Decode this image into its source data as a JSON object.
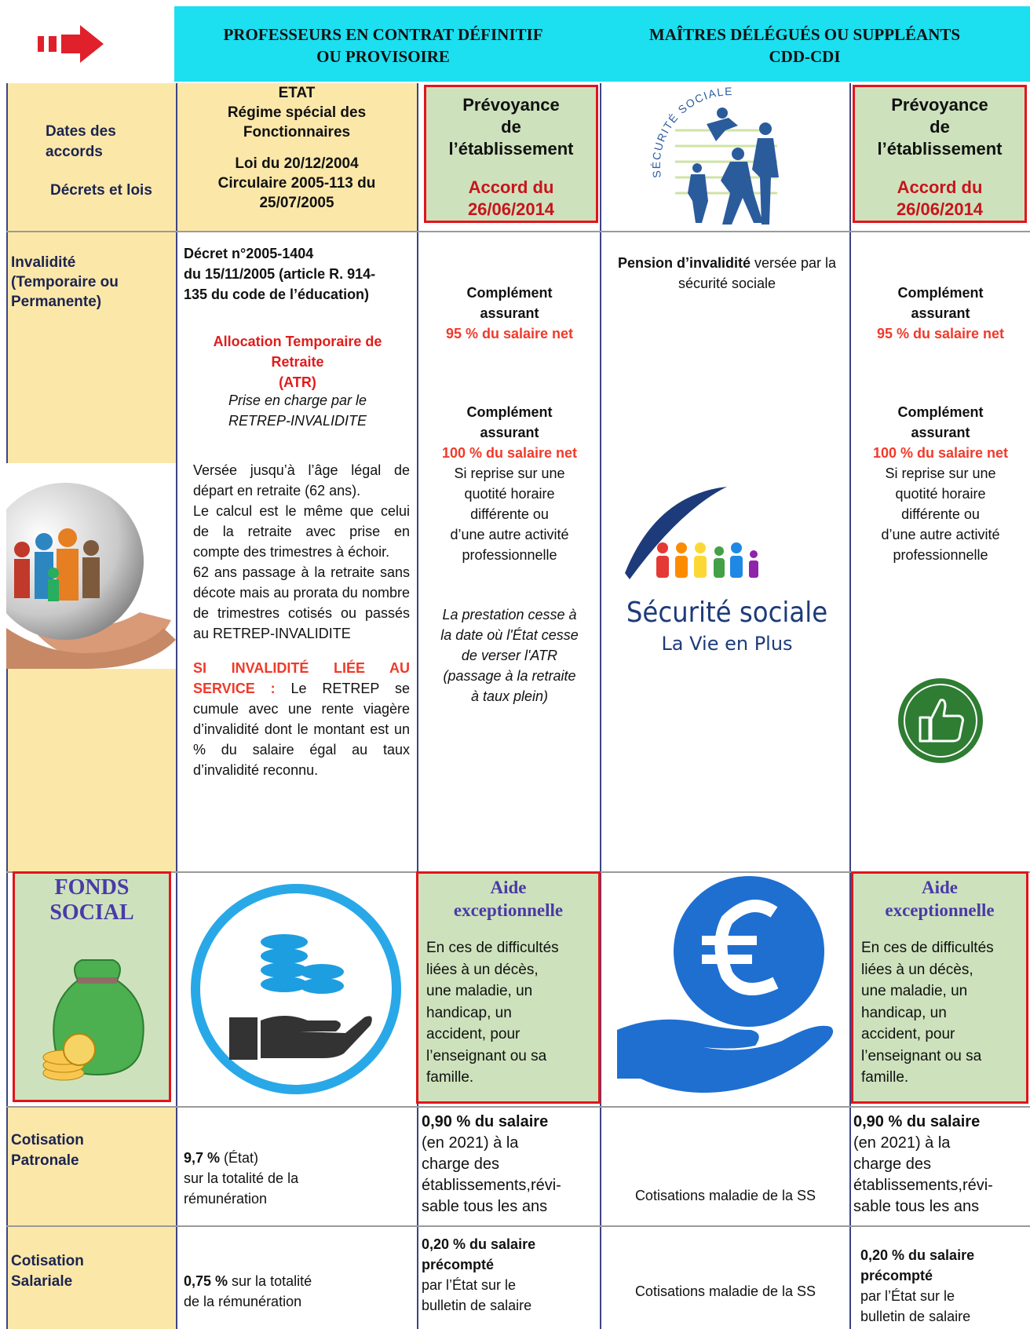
{
  "header": {
    "left_title": [
      "PROFESSEURS EN CONTRAT DÉFINITIF",
      "OU PROVISOIRE"
    ],
    "right_title": [
      "MAÎTRES DÉLÉGUÉS OU SUPPLÉANTS",
      "CDD-CDI"
    ]
  },
  "accords": {
    "label": [
      "Dates des",
      "accords"
    ],
    "label_2": "Décrets et lois",
    "etat": [
      "ETAT",
      "Régime spécial des",
      "Fonctionnaires"
    ],
    "loi": [
      "Loi du 20/12/2004",
      "Circulaire  2005-113 du",
      "25/07/2005"
    ],
    "prevoyance_left": {
      "title": [
        "Prévoyance",
        "de",
        "l’établissement"
      ],
      "accord": [
        "Accord  du",
        "26/06/2014"
      ]
    },
    "logo_text": "SÉCURITÉ SOCIALE",
    "prevoyance_right": {
      "title": [
        "Prévoyance",
        "de",
        "l’établissement"
      ],
      "accord": [
        "Accord  du",
        "26/06/2014"
      ]
    }
  },
  "invalidite": {
    "label": [
      "Invalidité",
      "(Temporaire ou",
      "Permanente)"
    ],
    "etat": {
      "decret": [
        "Décret n°2005-1404",
        "du 15/11/2005 (article R. 914-",
        "135 du code de l’éducation)"
      ],
      "atr": [
        "Allocation Temporaire de",
        "Retraite",
        "(ATR)"
      ],
      "prise": [
        "Prise en charge par le",
        "RETREP-INVALIDITE"
      ],
      "details": [
        "Versée jusqu’à l’âge légal de départ en retraite (62 ans).",
        "Le calcul est le même que celui de la retraite avec prise en compte des trimestres à échoir.",
        "62 ans passage à la retraite sans décote mais au prorata du nombre de trimestres cotisés ou passés au RETREP-INVALIDITE"
      ],
      "service_label": "SI INVALIDITÉ LIÉE AU SERVICE :",
      "service_text": " Le RETREP se cumule avec une rente viagère d’invalidité dont le montant est un % du salaire égal au taux d’invalidité reconnu."
    },
    "prevoyance_left": {
      "complement_1": [
        "Complément",
        "assurant"
      ],
      "rate_1": "95 % du salaire net",
      "complement_2": [
        "Complément",
        "assurant"
      ],
      "rate_2": "100 % du salaire net",
      "condition": [
        "Si reprise sur une",
        "quotité horaire",
        "différente ou",
        "d’une autre activité",
        "professionnelle"
      ],
      "note": [
        "La prestation cesse à",
        "la date où l'État cesse",
        "de verser l'ATR",
        "(passage à la retraite",
        "à taux plein)"
      ]
    },
    "securite_sociale": {
      "pension": "Pension d’invalidité",
      "pension_text": " versée par la sécurité sociale",
      "logo_name": "Sécurité sociale",
      "logo_tagline": "La Vie en Plus"
    },
    "prevoyance_right": {
      "complement_1": [
        "Complément",
        "assurant"
      ],
      "rate_1": "95 % du salaire net",
      "complement_2": [
        "Complément",
        "assurant"
      ],
      "rate_2": "100 % du salaire net",
      "condition": [
        "Si reprise sur une",
        "quotité horaire",
        "différente ou",
        "d’une autre activité",
        "professionnelle"
      ]
    }
  },
  "fonds_social": {
    "label": [
      "FONDS",
      "SOCIAL"
    ],
    "aide_left": {
      "title": [
        "Aide",
        "exceptionnelle"
      ],
      "text": [
        "En ces de difficultés",
        "liées à un décès,",
        "une maladie, un",
        "handicap, un",
        "accident, pour",
        "l’enseignant ou sa",
        "famille."
      ]
    },
    "aide_right": {
      "title": [
        "Aide",
        "exceptionnelle"
      ],
      "text": [
        "En ces de difficultés",
        "liées à un décès,",
        "une maladie, un",
        "handicap, un",
        "accident, pour",
        "l’enseignant ou sa",
        "famille."
      ]
    }
  },
  "cotisation_patronale": {
    "label": [
      "Cotisation",
      "Patronale"
    ],
    "etat_rate": "9,7 %",
    "etat_text": " (État)",
    "etat_detail": [
      "sur la totalité de la",
      "rémunération"
    ],
    "prevoyance_left": {
      "rate": "0,90 % du salaire",
      "text": [
        "(en 2021) à la",
        "charge des",
        "établissements,révi-",
        "sable tous les ans"
      ]
    },
    "securite_sociale": "Cotisations maladie de la SS",
    "prevoyance_right": {
      "rate": "0,90 % du salaire",
      "text": [
        "(en 2021) à la",
        "charge des",
        "établissements,révi-",
        "sable tous les ans"
      ]
    }
  },
  "cotisation_salariale": {
    "label": [
      "Cotisation",
      "Salariale"
    ],
    "etat_rate": "0,75 %",
    "etat_text": " sur la totalité",
    "etat_detail": "de la rémunération",
    "prevoyance_left": {
      "rate": [
        "0,20 % du salaire",
        "précompté"
      ],
      "text": [
        "par l’État sur le",
        "bulletin de salaire"
      ]
    },
    "securite_sociale": "Cotisations maladie de la SS",
    "prevoyance_right": {
      "rate": [
        "0,20 % du salaire",
        "précompté"
      ],
      "text": [
        "par l’État sur le",
        "bulletin de salaire"
      ]
    }
  }
}
